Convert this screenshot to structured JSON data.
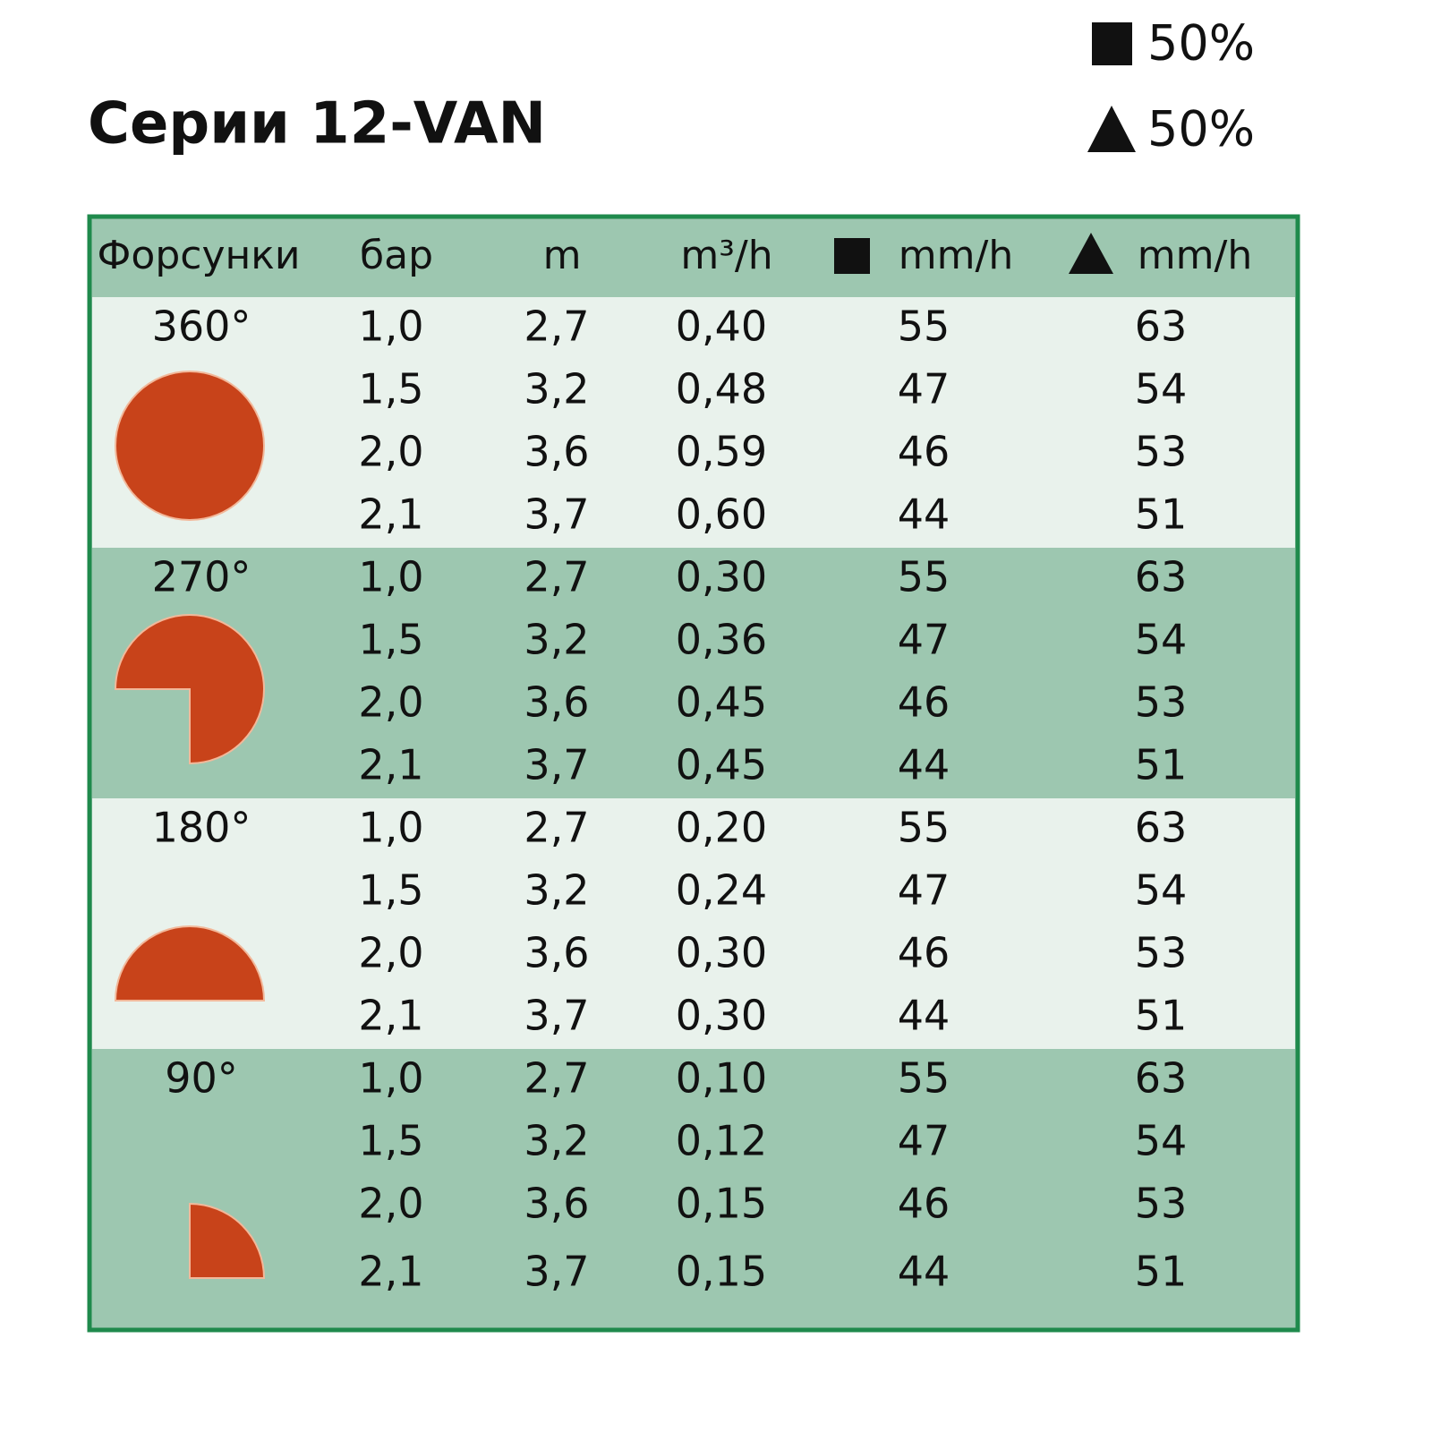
{
  "title": "Серии 12-VAN",
  "legend": [
    "50%",
    "50%"
  ],
  "table": {
    "headers": [
      "Форсунки",
      "бар",
      "m",
      "m³/h",
      "mm/h",
      "mm/h"
    ],
    "groups": [
      {
        "label": "360°",
        "rows": [
          [
            "1,0",
            "2,7",
            "0,40",
            "55",
            "63"
          ],
          [
            "1,5",
            "3,2",
            "0,48",
            "47",
            "54"
          ],
          [
            "2,0",
            "3,6",
            "0,59",
            "46",
            "53"
          ],
          [
            "2,1",
            "3,7",
            "0,60",
            "44",
            "51"
          ]
        ]
      },
      {
        "label": "270°",
        "rows": [
          [
            "1,0",
            "2,7",
            "0,30",
            "55",
            "63"
          ],
          [
            "1,5",
            "3,2",
            "0,36",
            "47",
            "54"
          ],
          [
            "2,0",
            "3,6",
            "0,45",
            "46",
            "53"
          ],
          [
            "2,1",
            "3,7",
            "0,45",
            "44",
            "51"
          ]
        ]
      },
      {
        "label": "180°",
        "rows": [
          [
            "1,0",
            "2,7",
            "0,20",
            "55",
            "63"
          ],
          [
            "1,5",
            "3,2",
            "0,24",
            "47",
            "54"
          ],
          [
            "2,0",
            "3,6",
            "0,30",
            "46",
            "53"
          ],
          [
            "2,1",
            "3,7",
            "0,30",
            "44",
            "51"
          ]
        ]
      },
      {
        "label": "90°",
        "rows": [
          [
            "1,0",
            "2,7",
            "0,10",
            "55",
            "63"
          ],
          [
            "1,5",
            "3,2",
            "0,12",
            "47",
            "54"
          ],
          [
            "2,0",
            "3,6",
            "0,15",
            "46",
            "53"
          ],
          [
            "2,1",
            "3,7",
            "0,15",
            "44",
            "51"
          ]
        ]
      }
    ]
  }
}
